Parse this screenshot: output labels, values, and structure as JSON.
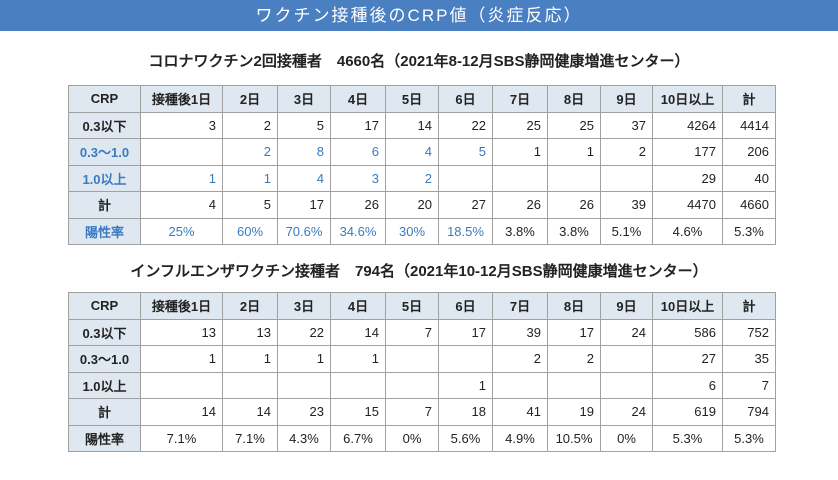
{
  "header": {
    "title": "ワクチン接種後のCRP値（炎症反応）"
  },
  "tables": [
    {
      "title": "コロナワクチン2回接種者　4660名（2021年8-12月SBS静岡健康増進センター）",
      "columns": [
        "CRP",
        "接種後1日",
        "2日",
        "3日",
        "4日",
        "5日",
        "6日",
        "7日",
        "8日",
        "9日",
        "10日以上",
        "計"
      ],
      "rows": [
        [
          "0.3以下",
          "3",
          "2",
          "5",
          "17",
          "14",
          "22",
          "25",
          "25",
          "37",
          "4264",
          "4414"
        ],
        [
          "0.3〜1.0",
          null,
          "2",
          "8",
          "6",
          "4",
          "5",
          "1",
          "1",
          "2",
          "177",
          "206"
        ],
        [
          "1.0以上",
          "1",
          "1",
          "4",
          "3",
          "2",
          null,
          null,
          null,
          null,
          "29",
          "40"
        ],
        [
          "計",
          "4",
          "5",
          "17",
          "26",
          "20",
          "27",
          "26",
          "26",
          "39",
          "4470",
          "4660"
        ],
        [
          "陽性率",
          "25%",
          "60%",
          "70.6%",
          "34.6%",
          "30%",
          "18.5%",
          "3.8%",
          "3.8%",
          "5.1%",
          "4.6%",
          "5.3%"
        ]
      ]
    },
    {
      "title": "インフルエンザワクチン接種者　794名（2021年10-12月SBS静岡健康増進センター）",
      "columns": [
        "CRP",
        "接種後1日",
        "2日",
        "3日",
        "4日",
        "5日",
        "6日",
        "7日",
        "8日",
        "9日",
        "10日以上",
        "計"
      ],
      "rows": [
        [
          "0.3以下",
          "13",
          "13",
          "22",
          "14",
          "7",
          "17",
          "39",
          "17",
          "24",
          "586",
          "752"
        ],
        [
          "0.3〜1.0",
          "1",
          "1",
          "1",
          "1",
          null,
          null,
          "2",
          "2",
          null,
          "27",
          "35"
        ],
        [
          "1.0以上",
          null,
          null,
          null,
          null,
          null,
          "1",
          null,
          null,
          null,
          "6",
          "7"
        ],
        [
          "計",
          "14",
          "14",
          "23",
          "15",
          "7",
          "18",
          "41",
          "19",
          "24",
          "619",
          "794"
        ],
        [
          "陽性率",
          "7.1%",
          "7.1%",
          "4.3%",
          "6.7%",
          "0%",
          "5.6%",
          "4.9%",
          "10.5%",
          "0%",
          "5.3%",
          "5.3%"
        ]
      ]
    }
  ]
}
